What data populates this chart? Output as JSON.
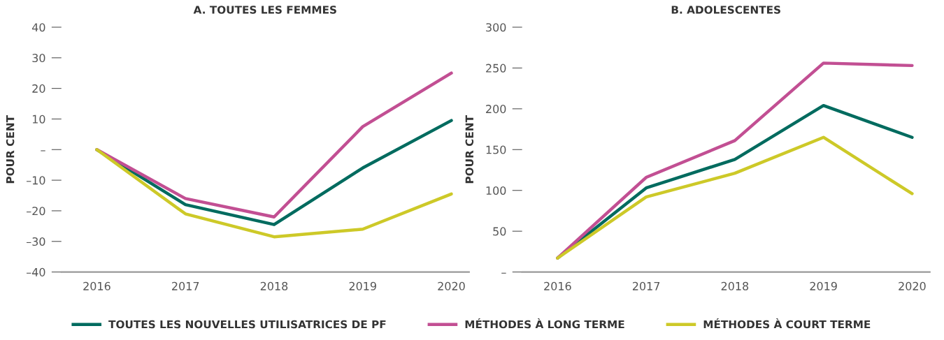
{
  "chart_data": [
    {
      "type": "line",
      "title": "A. TOUTES LES FEMMES",
      "ylabel": "POUR CENT",
      "categories": [
        "2016",
        "2017",
        "2018",
        "2019",
        "2020"
      ],
      "series": [
        {
          "name": "TOUTES LES NOUVELLES UTILISATRICES DE PF",
          "color": "#006b5f",
          "values": [
            0,
            -18,
            -24.5,
            -6,
            9.5
          ]
        },
        {
          "name": "MÉTHODES À LONG TERME",
          "color": "#c24f93",
          "values": [
            0,
            -16,
            -22,
            7.5,
            25
          ]
        },
        {
          "name": "MÉTHODES À COURT TERME",
          "color": "#cdc928",
          "values": [
            0,
            -21,
            -28.5,
            -26,
            -14.5
          ]
        }
      ],
      "ylim": [
        -40,
        40
      ],
      "yticks": [
        {
          "value": -40,
          "label": "–40"
        },
        {
          "value": -30,
          "label": "–30"
        },
        {
          "value": -20,
          "label": "–20"
        },
        {
          "value": -10,
          "label": "–10"
        },
        {
          "value": 0,
          "label": "–"
        },
        10,
        20,
        30,
        40
      ],
      "grid": false,
      "legend": "bottom",
      "marker": "none",
      "line_style": "solid"
    },
    {
      "type": "line",
      "title": "B. ADOLESCENTES",
      "ylabel": "POUR CENT",
      "categories": [
        "2016",
        "2017",
        "2018",
        "2019",
        "2020"
      ],
      "series": [
        {
          "color": "#006b5f",
          "values": [
            17,
            103,
            138,
            204,
            165
          ]
        },
        {
          "color": "#c24f93",
          "values": [
            17,
            116,
            161,
            256,
            253
          ]
        },
        {
          "color": "#cdc928",
          "values": [
            17,
            92,
            121,
            165,
            96
          ]
        }
      ],
      "ylim": [
        0,
        300
      ],
      "yticks": [
        {
          "value": 0,
          "label": "–"
        },
        50,
        100,
        150,
        200,
        250,
        300
      ],
      "grid": false,
      "marker": "none",
      "line_style": "solid"
    }
  ]
}
